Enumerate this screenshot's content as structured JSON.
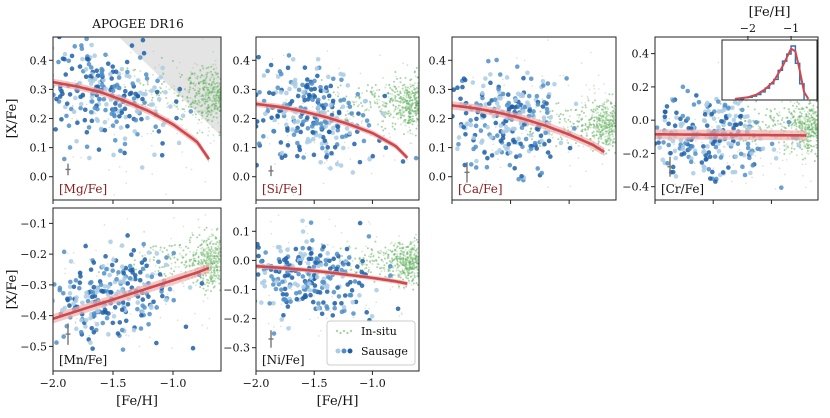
{
  "figure_title": "APOGEE DR16",
  "colors": {
    "insitu": "#5fae5f",
    "insitu_light": "#a9d5a0",
    "sausage_dark": "#1f5fa8",
    "sausage_mid": "#4f8fc8",
    "sausage_light": "#a9cbe4",
    "fit": "#d0484c",
    "fit_band": "#eeb0b0",
    "exclusion": "#e4e4e4",
    "label_red": "#8b1a1a",
    "label_black": "#111111",
    "hist_blue": "#2f6fb5"
  },
  "chart_data": [
    {
      "type": "scatter",
      "panel": "mg",
      "label": "[Mg/Fe]",
      "label_color": "red",
      "ylabel": "[X/Fe]",
      "xlabel": "",
      "xlim": [
        -2.0,
        -0.6
      ],
      "ylim": [
        -0.08,
        0.48
      ],
      "xticks": [
        -2.0,
        -1.5,
        -1.0
      ],
      "yticks": [
        0.0,
        0.1,
        0.2,
        0.3,
        0.4
      ],
      "ytick_labels": [
        "0.0",
        "0.1",
        "0.2",
        "0.3",
        "0.4"
      ],
      "fit_x": [
        -2.0,
        -1.8,
        -1.6,
        -1.4,
        -1.2,
        -1.0,
        -0.8,
        -0.7
      ],
      "fit_y": [
        0.325,
        0.31,
        0.29,
        0.26,
        0.225,
        0.18,
        0.12,
        0.06
      ],
      "band_halfwidth": 0.012,
      "sausage_center": 0.24,
      "sausage_spread": 0.09,
      "sausage_slope": -0.12,
      "insitu_center": 0.28,
      "insitu_spread": 0.06,
      "err_y": 0.025,
      "err_half": 0.02,
      "exclusion": true
    },
    {
      "type": "scatter",
      "panel": "si",
      "label": "[Si/Fe]",
      "label_color": "red",
      "ylabel": "",
      "xlabel": "",
      "xlim": [
        -2.0,
        -0.6
      ],
      "ylim": [
        -0.08,
        0.48
      ],
      "xticks": [
        -2.0,
        -1.5,
        -1.0
      ],
      "yticks": [
        0.0,
        0.1,
        0.2,
        0.3,
        0.4
      ],
      "ytick_labels": [
        "0.0",
        "0.1",
        "0.2",
        "0.3",
        "0.4"
      ],
      "fit_x": [
        -2.0,
        -1.8,
        -1.6,
        -1.4,
        -1.2,
        -1.0,
        -0.8,
        -0.7
      ],
      "fit_y": [
        0.25,
        0.24,
        0.225,
        0.205,
        0.18,
        0.15,
        0.105,
        0.065
      ],
      "band_halfwidth": 0.01,
      "sausage_center": 0.19,
      "sausage_spread": 0.08,
      "sausage_slope": -0.08,
      "insitu_center": 0.25,
      "insitu_spread": 0.05,
      "err_y": 0.02,
      "err_half": 0.018,
      "exclusion": false
    },
    {
      "type": "scatter",
      "panel": "ca",
      "label": "[Ca/Fe]",
      "label_color": "red",
      "ylabel": "",
      "xlabel": "",
      "xlim": [
        -2.0,
        -0.6
      ],
      "ylim": [
        -0.08,
        0.48
      ],
      "xticks": [
        -2.0,
        -1.5,
        -1.0
      ],
      "yticks": [
        0.0,
        0.1,
        0.2,
        0.3,
        0.4
      ],
      "ytick_labels": [
        "0.0",
        "0.1",
        "0.2",
        "0.3",
        "0.4"
      ],
      "fit_x": [
        -2.0,
        -1.8,
        -1.6,
        -1.4,
        -1.2,
        -1.0,
        -0.8,
        -0.7
      ],
      "fit_y": [
        0.245,
        0.235,
        0.22,
        0.2,
        0.175,
        0.145,
        0.11,
        0.085
      ],
      "band_halfwidth": 0.014,
      "sausage_center": 0.17,
      "sausage_spread": 0.08,
      "sausage_slope": -0.06,
      "insitu_center": 0.18,
      "insitu_spread": 0.05,
      "err_y": 0.015,
      "err_half": 0.035,
      "exclusion": false
    },
    {
      "type": "scatter",
      "panel": "cr",
      "label": "[Cr/Fe]",
      "label_color": "black",
      "ylabel": "",
      "xlabel": "",
      "xlim": [
        -2.0,
        -0.6
      ],
      "ylim": [
        -0.48,
        0.5
      ],
      "xticks": [
        -2.0,
        -1.5,
        -1.0
      ],
      "yticks": [
        -0.4,
        -0.2,
        0.0,
        0.2,
        0.4
      ],
      "ytick_labels": [
        "−0.4",
        "−0.2",
        "0.0",
        "0.2",
        "0.4"
      ],
      "fit_x": [
        -2.0,
        -1.6,
        -1.2,
        -0.8,
        -0.7
      ],
      "fit_y": [
        -0.085,
        -0.087,
        -0.089,
        -0.091,
        -0.092
      ],
      "band_halfwidth": 0.03,
      "sausage_center": -0.1,
      "sausage_spread": 0.12,
      "sausage_slope": 0.0,
      "insitu_center": -0.05,
      "insitu_spread": 0.09,
      "err_y": -0.28,
      "err_half": 0.06,
      "exclusion": false,
      "inset": {
        "title": "[Fe/H]",
        "xlim": [
          -2.6,
          -0.4
        ],
        "xticks": [
          -2,
          -1
        ],
        "xtick_labels": [
          "−2",
          "−1"
        ],
        "hist_edges": [
          -2.2,
          -2.1,
          -2.0,
          -1.9,
          -1.8,
          -1.7,
          -1.6,
          -1.5,
          -1.4,
          -1.3,
          -1.2,
          -1.1,
          -1.0,
          -0.9,
          -0.8,
          -0.7
        ],
        "hist_counts": [
          0.02,
          0.04,
          0.05,
          0.07,
          0.1,
          0.15,
          0.22,
          0.3,
          0.38,
          0.55,
          0.72,
          0.85,
          1.0,
          0.68,
          0.3
        ],
        "pdf_x": [
          -2.3,
          -2.0,
          -1.8,
          -1.6,
          -1.4,
          -1.2,
          -1.0,
          -0.9,
          -0.8,
          -0.7,
          -0.6
        ],
        "pdf_y": [
          0.02,
          0.05,
          0.1,
          0.2,
          0.35,
          0.62,
          0.95,
          0.9,
          0.55,
          0.15,
          0.02
        ]
      }
    },
    {
      "type": "scatter",
      "panel": "mn",
      "label": "[Mn/Fe]",
      "label_color": "black",
      "ylabel": "[X/Fe]",
      "xlabel": "[Fe/H]",
      "xlim": [
        -2.0,
        -0.6
      ],
      "ylim": [
        -0.58,
        -0.05
      ],
      "xticks": [
        -2.0,
        -1.5,
        -1.0
      ],
      "xtick_labels": [
        "−2.0",
        "−1.5",
        "−1.0"
      ],
      "yticks": [
        -0.5,
        -0.4,
        -0.3,
        -0.2,
        -0.1
      ],
      "ytick_labels": [
        "−0.5",
        "−0.4",
        "−0.3",
        "−0.2",
        "−0.1"
      ],
      "fit_x": [
        -2.0,
        -1.8,
        -1.6,
        -1.4,
        -1.2,
        -1.0,
        -0.8,
        -0.7
      ],
      "fit_y": [
        -0.41,
        -0.385,
        -0.36,
        -0.335,
        -0.31,
        -0.285,
        -0.26,
        -0.245
      ],
      "band_halfwidth": 0.015,
      "sausage_center": -0.32,
      "sausage_spread": 0.07,
      "sausage_slope": 0.07,
      "insitu_center": -0.22,
      "insitu_spread": 0.05,
      "err_y": -0.46,
      "err_half": 0.035,
      "exclusion": false
    },
    {
      "type": "scatter",
      "panel": "ni",
      "label": "[Ni/Fe]",
      "label_color": "black",
      "ylabel": "",
      "xlabel": "[Fe/H]",
      "xlim": [
        -2.0,
        -0.6
      ],
      "ylim": [
        -0.38,
        0.18
      ],
      "xticks": [
        -2.0,
        -1.5,
        -1.0
      ],
      "xtick_labels": [
        "−2.0",
        "−1.5",
        "−1.0"
      ],
      "yticks": [
        -0.3,
        -0.2,
        -0.1,
        0.0,
        0.1
      ],
      "ytick_labels": [
        "−0.3",
        "−0.2",
        "−0.1",
        "0.0",
        "0.1"
      ],
      "fit_x": [
        -2.0,
        -1.8,
        -1.6,
        -1.4,
        -1.2,
        -1.0,
        -0.8,
        -0.7
      ],
      "fit_y": [
        -0.02,
        -0.025,
        -0.032,
        -0.04,
        -0.05,
        -0.06,
        -0.072,
        -0.08
      ],
      "band_halfwidth": 0.008,
      "sausage_center": -0.06,
      "sausage_spread": 0.07,
      "sausage_slope": -0.03,
      "insitu_center": -0.01,
      "insitu_spread": 0.04,
      "err_y": -0.27,
      "err_half": 0.03,
      "exclusion": false,
      "legend": [
        {
          "label": "In-situ",
          "series": "insitu"
        },
        {
          "label": "Sausage",
          "series": "sausage"
        }
      ]
    }
  ]
}
